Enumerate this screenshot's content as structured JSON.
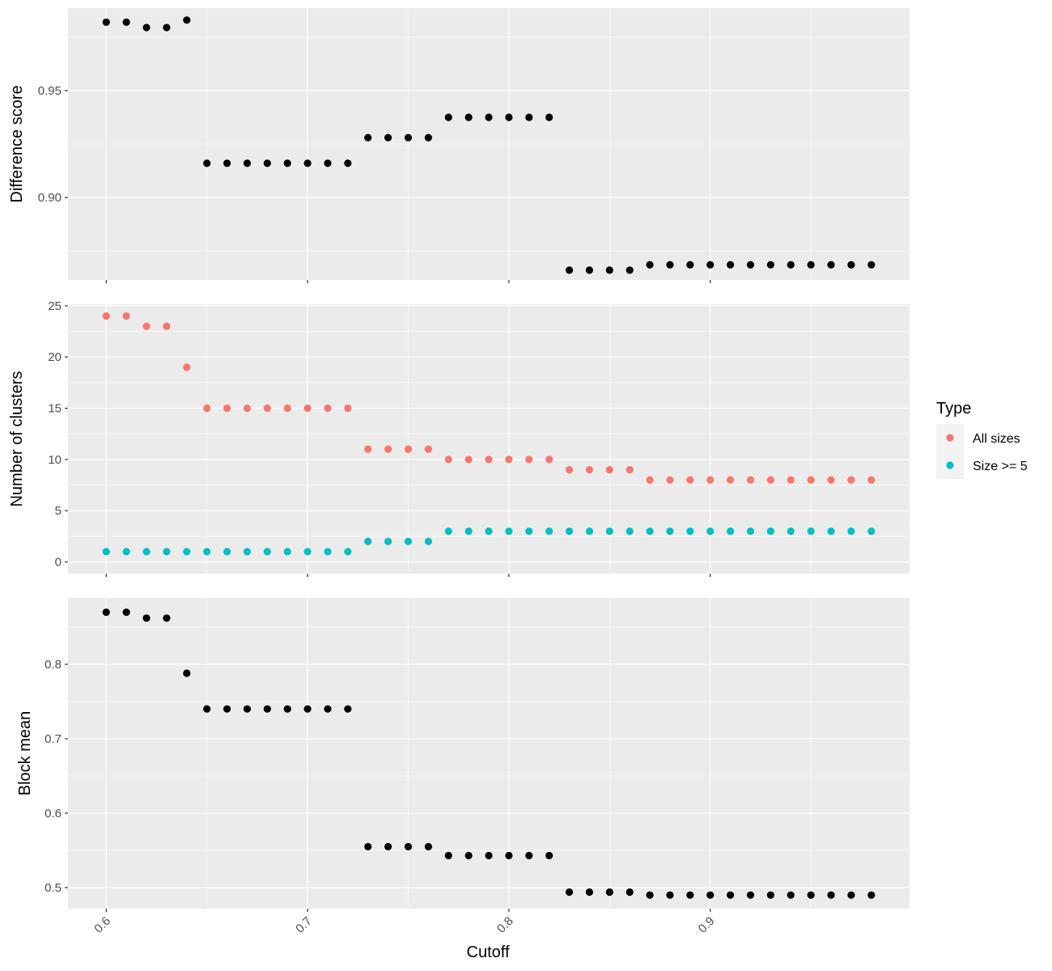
{
  "chart_data": {
    "type": "scatter",
    "facet_layout": "vertical stack, shared x axis",
    "xlabel": "Cutoff",
    "x_ticks": [
      "0.6",
      "0.7",
      "0.8",
      "0.9"
    ],
    "x_tick_rotation": "45 degrees",
    "xlim": [
      0.581,
      0.999
    ],
    "grid": true,
    "background": "#ebebeb",
    "x": [
      0.6,
      0.61,
      0.62,
      0.63,
      0.64,
      0.65,
      0.66,
      0.67,
      0.68,
      0.69,
      0.7,
      0.71,
      0.72,
      0.73,
      0.74,
      0.75,
      0.76,
      0.77,
      0.78,
      0.79,
      0.8,
      0.81,
      0.82,
      0.83,
      0.84,
      0.85,
      0.86,
      0.87,
      0.88,
      0.89,
      0.9,
      0.91,
      0.92,
      0.93,
      0.94,
      0.95,
      0.96,
      0.97,
      0.98
    ],
    "panels": [
      {
        "ylabel": "Difference score",
        "ylim": [
          0.8614,
          0.9886
        ],
        "y_ticks": [
          "0.90",
          "0.95"
        ],
        "series": [
          {
            "color": "#000000",
            "values": [
              0.982,
              0.982,
              0.9795,
              0.9795,
              0.983,
              0.916,
              0.916,
              0.916,
              0.916,
              0.916,
              0.916,
              0.916,
              0.916,
              0.928,
              0.928,
              0.928,
              0.928,
              0.9375,
              0.9375,
              0.9375,
              0.9375,
              0.9375,
              0.9375,
              0.866,
              0.866,
              0.866,
              0.866,
              0.8685,
              0.8685,
              0.8685,
              0.8685,
              0.8685,
              0.8685,
              0.8685,
              0.8685,
              0.8685,
              0.8685,
              0.8685,
              0.8685
            ]
          }
        ]
      },
      {
        "ylabel": "Number of clusters",
        "ylim": [
          -1.15,
          25.15
        ],
        "y_ticks": [
          "0",
          "5",
          "10",
          "15",
          "20",
          "25"
        ],
        "series": [
          {
            "name": "All sizes",
            "color": "#f8766d",
            "values": [
              24,
              24,
              23,
              23,
              19,
              15,
              15,
              15,
              15,
              15,
              15,
              15,
              15,
              11,
              11,
              11,
              11,
              10,
              10,
              10,
              10,
              10,
              10,
              9,
              9,
              9,
              9,
              8,
              8,
              8,
              8,
              8,
              8,
              8,
              8,
              8,
              8,
              8,
              8
            ]
          },
          {
            "name": "Size >= 5",
            "color": "#00bfc4",
            "values": [
              1,
              1,
              1,
              1,
              1,
              1,
              1,
              1,
              1,
              1,
              1,
              1,
              1,
              2,
              2,
              2,
              2,
              3,
              3,
              3,
              3,
              3,
              3,
              3,
              3,
              3,
              3,
              3,
              3,
              3,
              3,
              3,
              3,
              3,
              3,
              3,
              3,
              3,
              3
            ]
          }
        ]
      },
      {
        "ylabel": "Block mean",
        "ylim": [
          0.4717,
          0.8891
        ],
        "y_ticks": [
          "0.5",
          "0.6",
          "0.7",
          "0.8"
        ],
        "series": [
          {
            "color": "#000000",
            "values": [
              0.87,
              0.87,
              0.862,
              0.862,
              0.788,
              0.74,
              0.74,
              0.74,
              0.74,
              0.74,
              0.74,
              0.74,
              0.74,
              0.555,
              0.555,
              0.555,
              0.555,
              0.543,
              0.543,
              0.543,
              0.543,
              0.543,
              0.543,
              0.494,
              0.494,
              0.494,
              0.494,
              0.49,
              0.49,
              0.49,
              0.49,
              0.49,
              0.49,
              0.49,
              0.49,
              0.49,
              0.49,
              0.49,
              0.49
            ]
          }
        ]
      }
    ],
    "legend": {
      "title": "Type",
      "placement": "right",
      "entries": [
        {
          "label": "All sizes",
          "color": "#f8766d"
        },
        {
          "label": "Size >= 5",
          "color": "#00bfc4"
        }
      ]
    }
  }
}
